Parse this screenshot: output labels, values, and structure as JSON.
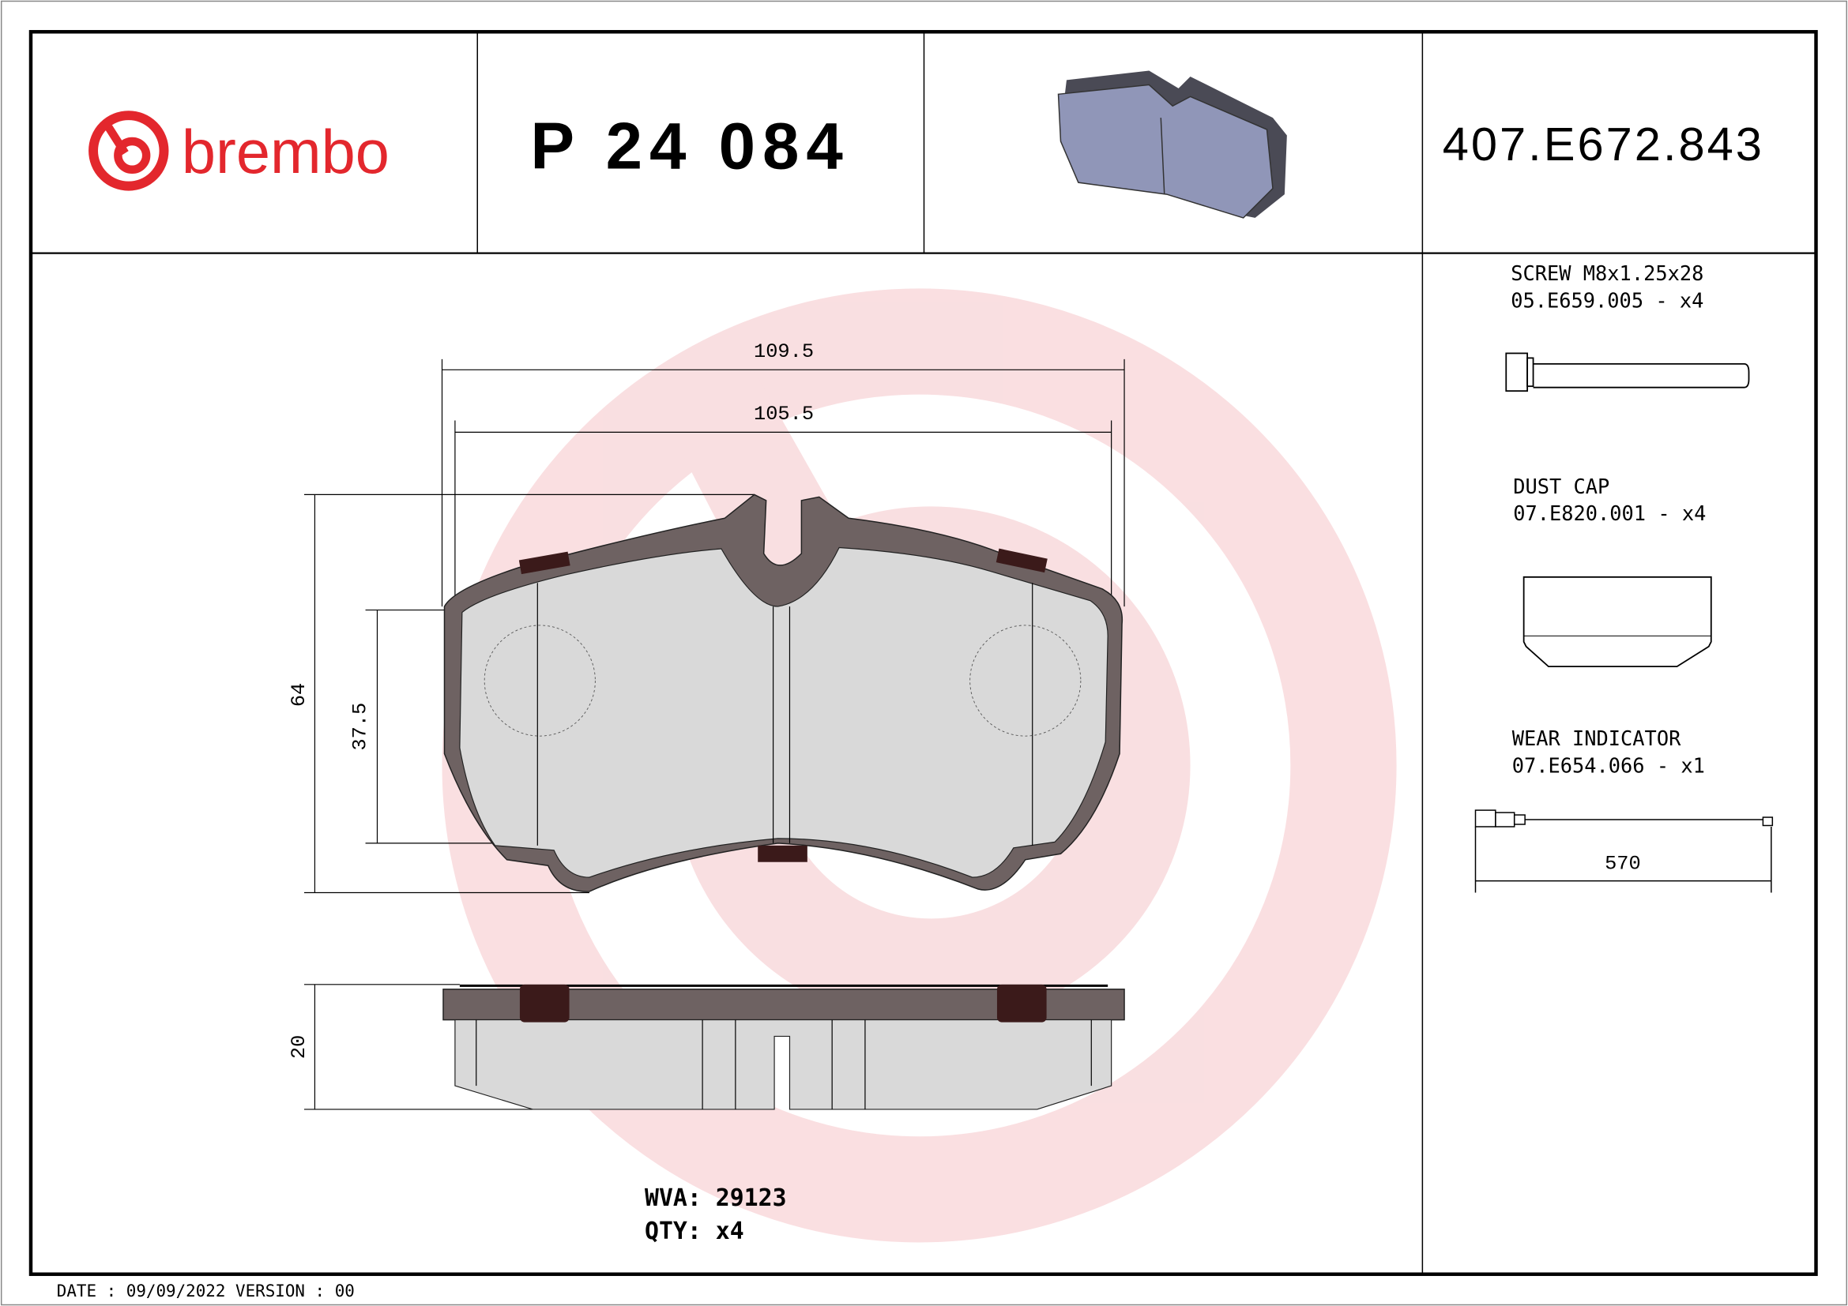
{
  "header": {
    "brand": "brembo",
    "part_number": "P 24 084",
    "reference_code": "407.E672.843"
  },
  "dimensions": {
    "overall_width": "109.5",
    "backplate_width": "105.5",
    "overall_height": "64",
    "friction_height": "37.5",
    "thickness": "20"
  },
  "accessories": [
    {
      "name": "SCREW M8x1.25x28",
      "code": "05.E659.005 - x4"
    },
    {
      "name": "DUST CAP",
      "code": "07.E820.001 - x4"
    },
    {
      "name": "WEAR INDICATOR",
      "code": "07.E654.066 - x1",
      "length": "570"
    }
  ],
  "footer_info": {
    "wva": "WVA: 29123",
    "qty": "QTY: x4",
    "date_version": "DATE : 09/09/2022 VERSION : 00"
  },
  "colors": {
    "brand_red": "#e3272d",
    "watermark": "#f7d3d5",
    "backplate": "#6e6262",
    "friction": "#d9d9d9"
  }
}
